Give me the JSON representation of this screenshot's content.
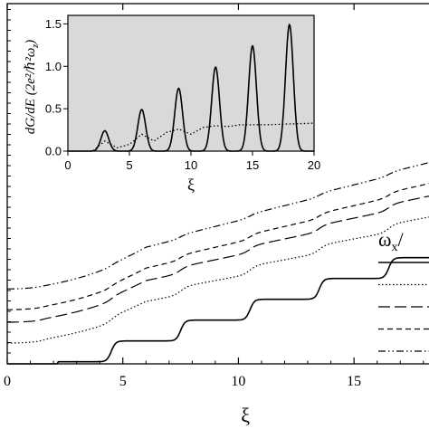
{
  "chart_data": [
    {
      "type": "line",
      "role": "main",
      "xlabel": "ξ",
      "xlim": [
        0,
        18.4
      ],
      "x_ticks": [
        "0",
        "5",
        "10",
        "15"
      ],
      "x_tick_values": [
        0,
        5,
        10,
        15
      ],
      "legend_title": "ω",
      "legend_subscript": "x",
      "legend_title_suffix": "/",
      "legend_position": "right",
      "series": [
        {
          "dash": "solid",
          "offset": 0,
          "x": [
            0,
            2.5,
            3,
            3.5,
            6,
            6.5,
            9,
            9.5,
            12,
            12.5,
            15,
            15.5,
            18,
            18.4
          ],
          "y": [
            0,
            0,
            1,
            1,
            1,
            2,
            2,
            3,
            3,
            4,
            4,
            5,
            5,
            6.2
          ]
        },
        {
          "dash": "dotted",
          "offset": 1,
          "x": [
            0,
            18.4
          ],
          "y": [
            0,
            6.2
          ]
        },
        {
          "dash": "long-dash",
          "offset": 2,
          "x": [
            0,
            18.4
          ],
          "y": [
            0,
            6.2
          ]
        },
        {
          "dash": "short-dash",
          "offset": 2.6,
          "x": [
            0,
            18.4
          ],
          "y": [
            0,
            6.2
          ]
        },
        {
          "dash": "dash-dot-dot",
          "offset": 3.6,
          "x": [
            0,
            18.4
          ],
          "y": [
            0,
            6.2
          ]
        }
      ]
    },
    {
      "type": "line",
      "role": "inset",
      "xlabel": "ξ",
      "ylabel": "dG/dE (2e²/ℏ²ω",
      "ylabel_subscript": "z",
      "ylabel_suffix": ")",
      "xlim": [
        0,
        20
      ],
      "ylim": [
        0,
        1.6
      ],
      "x_ticks": [
        "0",
        "5",
        "10",
        "15",
        "20"
      ],
      "x_tick_values": [
        0,
        5,
        10,
        15,
        20
      ],
      "y_ticks": [
        "0.0",
        "0.5",
        "1.0",
        "1.5"
      ],
      "y_tick_values": [
        0,
        0.5,
        1.0,
        1.5
      ],
      "background": "#d9d9d9",
      "series": [
        {
          "dash": "solid",
          "peaks_x": [
            3,
            6,
            9,
            12,
            15,
            18
          ],
          "peaks_y": [
            0.24,
            0.49,
            0.74,
            0.99,
            1.24,
            1.49
          ]
        },
        {
          "dash": "dotted",
          "x": [
            0,
            2,
            3,
            4,
            5,
            6,
            7,
            8,
            9,
            10,
            11,
            12,
            13,
            14,
            16,
            18,
            20
          ],
          "y": [
            0,
            0,
            0.12,
            0.04,
            0.08,
            0.2,
            0.12,
            0.22,
            0.26,
            0.2,
            0.28,
            0.3,
            0.29,
            0.31,
            0.31,
            0.32,
            0.33
          ]
        }
      ]
    }
  ]
}
